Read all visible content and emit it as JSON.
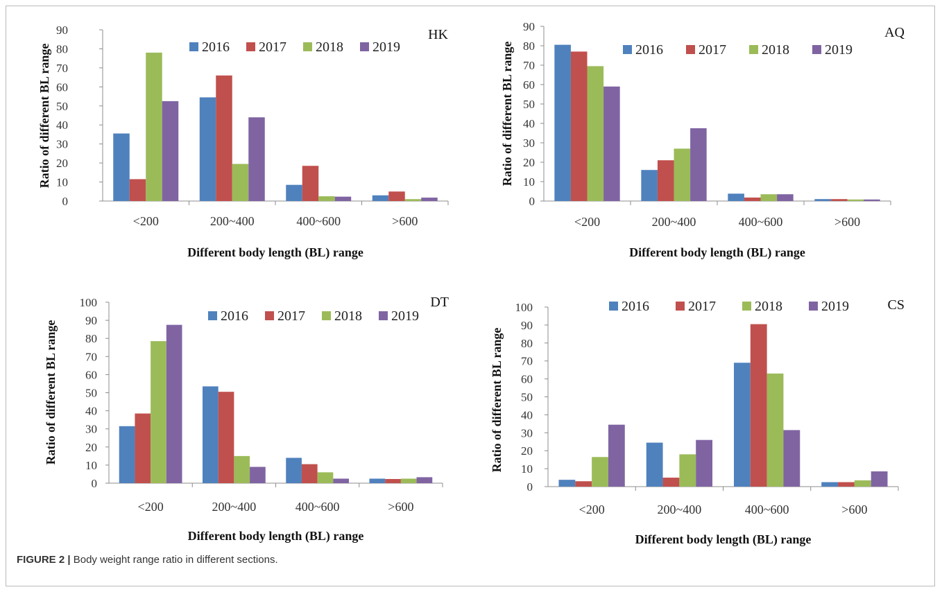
{
  "caption": {
    "label": "FIGURE 2 |",
    "text": "Body weight range ratio in different sections."
  },
  "colors": [
    "#4f81bd",
    "#c0504d",
    "#9bbb59",
    "#8064a2"
  ],
  "chart_data": [
    {
      "type": "bar",
      "panel_label": "HK",
      "categories": [
        "<200",
        "200~400",
        "400~600",
        ">600"
      ],
      "series": [
        {
          "name": "2016",
          "values": [
            35.5,
            54.5,
            8.5,
            3
          ]
        },
        {
          "name": "2017",
          "values": [
            11.5,
            66,
            18.5,
            5
          ]
        },
        {
          "name": "2018",
          "values": [
            78,
            19.5,
            2.5,
            1
          ]
        },
        {
          "name": "2019",
          "values": [
            52.5,
            44,
            2.3,
            1.8
          ]
        }
      ],
      "xlabel": "Different body length (BL) range",
      "ylabel": "Ratio of different BL range",
      "ylim": [
        0,
        90
      ],
      "yticks": [
        0,
        10,
        20,
        30,
        40,
        50,
        60,
        70,
        80,
        90
      ],
      "legend": "top-center",
      "grid": false
    },
    {
      "type": "bar",
      "panel_label": "AQ",
      "categories": [
        "<200",
        "200~400",
        "400~600",
        ">600"
      ],
      "series": [
        {
          "name": "2016",
          "values": [
            80.5,
            16,
            3.8,
            1
          ]
        },
        {
          "name": "2017",
          "values": [
            77,
            21,
            1.8,
            1
          ]
        },
        {
          "name": "2018",
          "values": [
            69.5,
            27,
            3.5,
            0.8
          ]
        },
        {
          "name": "2019",
          "values": [
            59,
            37.5,
            3.5,
            0.8
          ]
        }
      ],
      "xlabel": "Different body length (BL) range",
      "ylabel": "Ratio of different BL range",
      "ylim": [
        0,
        90
      ],
      "yticks": [
        0,
        10,
        20,
        30,
        40,
        50,
        60,
        70,
        80,
        90
      ],
      "legend": "top-center",
      "grid": false
    },
    {
      "type": "bar",
      "panel_label": "DT",
      "categories": [
        "<200",
        "200~400",
        "400~600",
        ">600"
      ],
      "series": [
        {
          "name": "2016",
          "values": [
            31.5,
            53.5,
            14,
            2.5
          ]
        },
        {
          "name": "2017",
          "values": [
            38.5,
            50.5,
            10.5,
            2.3
          ]
        },
        {
          "name": "2018",
          "values": [
            78.5,
            15,
            6,
            2.5
          ]
        },
        {
          "name": "2019",
          "values": [
            87.5,
            9,
            2.5,
            3.3
          ]
        }
      ],
      "xlabel": "Different body length (BL) range",
      "ylabel": "Ratio of different BL range",
      "ylim": [
        0,
        100
      ],
      "yticks": [
        0,
        10,
        20,
        30,
        40,
        50,
        60,
        70,
        80,
        90,
        100
      ],
      "legend": "top-center",
      "grid": false
    },
    {
      "type": "bar",
      "panel_label": "CS",
      "categories": [
        "<200",
        "200~400",
        "400~600",
        ">600"
      ],
      "series": [
        {
          "name": "2016",
          "values": [
            3.8,
            24.5,
            69,
            2.5
          ]
        },
        {
          "name": "2017",
          "values": [
            3,
            5,
            90.5,
            2.5
          ]
        },
        {
          "name": "2018",
          "values": [
            16.5,
            18,
            63,
            3.5
          ]
        },
        {
          "name": "2019",
          "values": [
            34.5,
            26,
            31.5,
            8.5
          ]
        }
      ],
      "xlabel": "Different body length (BL) range",
      "ylabel": "Ratio of different BL range",
      "ylim": [
        0,
        100
      ],
      "yticks": [
        0,
        10,
        20,
        30,
        40,
        50,
        60,
        70,
        80,
        90,
        100
      ],
      "legend": "top-center",
      "grid": false
    }
  ]
}
